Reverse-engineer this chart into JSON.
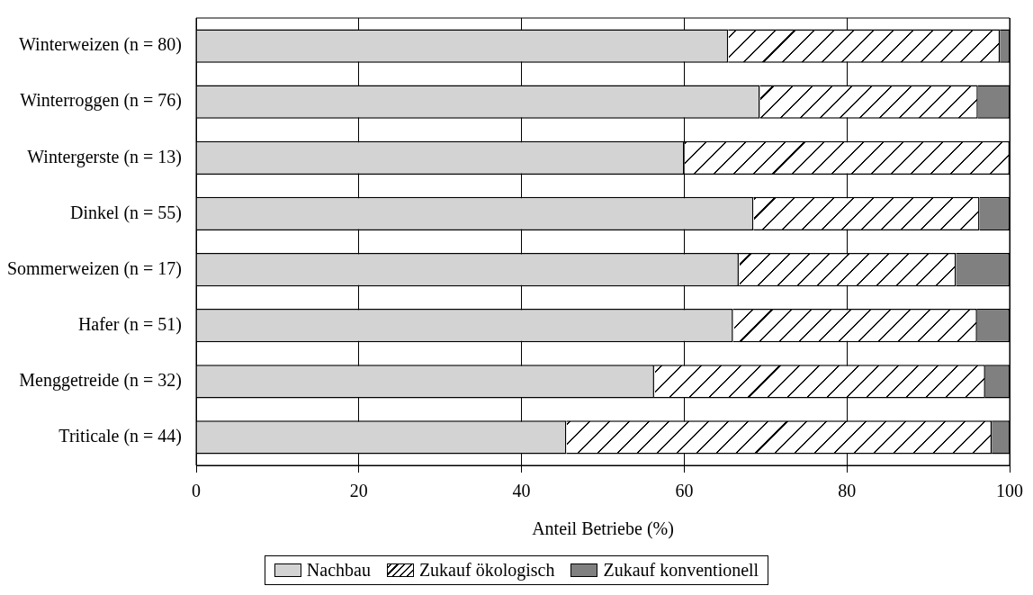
{
  "chart_data": {
    "type": "bar",
    "orientation": "horizontal",
    "stacked": true,
    "xlabel": "Anteil Betriebe (%)",
    "categories": [
      "Winterweizen (n = 80)",
      "Winterroggen (n = 76)",
      "Wintergerste (n = 13)",
      "Dinkel (n = 55)",
      "Sommerweizen (n = 17)",
      "Hafer (n = 51)",
      "Menggetreide (n = 32)",
      "Triticale (n = 44)"
    ],
    "series": [
      {
        "name": "Nachbau",
        "color": "#d3d3d3",
        "values": [
          65.4,
          69.3,
          60.0,
          68.5,
          66.7,
          66.0,
          56.3,
          45.5
        ]
      },
      {
        "name": "Zukauf ökologisch",
        "color": "#ffffff",
        "values": [
          33.4,
          26.8,
          40.0,
          27.8,
          26.7,
          30.0,
          40.7,
          52.3
        ]
      },
      {
        "name": "Zukauf konventionell",
        "color": "#808080",
        "values": [
          1.2,
          3.9,
          0,
          3.7,
          6.6,
          4.0,
          3.0,
          2.2
        ]
      }
    ],
    "xlim": [
      0,
      100
    ],
    "xticks": [
      0,
      20,
      40,
      60,
      80,
      100
    ],
    "grid": "x",
    "legend": "bottom"
  }
}
